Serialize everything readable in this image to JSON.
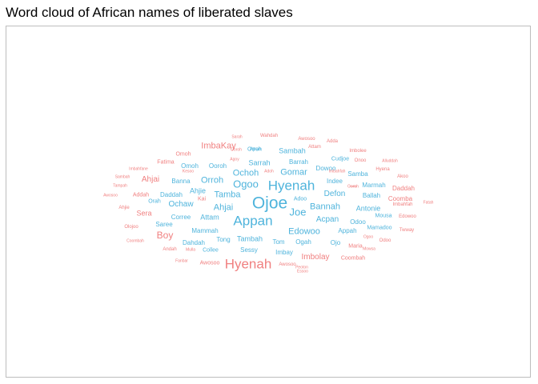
{
  "title": "Word cloud of African names of liberated slaves",
  "colors": {
    "red": "#f08080",
    "blue": "#4fb4dc"
  },
  "words": [
    {
      "text": "Ojoe",
      "color": "blue"
    },
    {
      "text": "Appan",
      "color": "blue"
    },
    {
      "text": "Hyenah",
      "color": "blue"
    },
    {
      "text": "Hyenah",
      "color": "red"
    },
    {
      "text": "Ogoo",
      "color": "blue"
    },
    {
      "text": "Joe",
      "color": "blue"
    },
    {
      "text": "Ochoh",
      "color": "blue"
    },
    {
      "text": "Bannah",
      "color": "blue"
    },
    {
      "text": "Gomar",
      "color": "blue"
    },
    {
      "text": "Orroh",
      "color": "blue"
    },
    {
      "text": "Ahjai",
      "color": "blue"
    },
    {
      "text": "Tamba",
      "color": "blue"
    },
    {
      "text": "Boy",
      "color": "red"
    },
    {
      "text": "ImbaKay",
      "color": "red"
    },
    {
      "text": "Edowoo",
      "color": "blue"
    },
    {
      "text": "Defon",
      "color": "blue"
    },
    {
      "text": "Acpan",
      "color": "blue"
    },
    {
      "text": "Ochaw",
      "color": "blue"
    },
    {
      "text": "Ahjai",
      "color": "red"
    },
    {
      "text": "Imbolay",
      "color": "red"
    },
    {
      "text": "Ahjie",
      "color": "blue"
    },
    {
      "text": "Sera",
      "color": "red"
    },
    {
      "text": "Attam",
      "color": "blue"
    },
    {
      "text": "Tambah",
      "color": "blue"
    },
    {
      "text": "Sambah",
      "color": "blue"
    },
    {
      "text": "Sarrah",
      "color": "blue"
    },
    {
      "text": "Barrah",
      "color": "blue"
    },
    {
      "text": "Dowoo",
      "color": "blue"
    },
    {
      "text": "Indee",
      "color": "blue"
    },
    {
      "text": "Antonie",
      "color": "blue"
    },
    {
      "text": "Odoo",
      "color": "blue"
    },
    {
      "text": "Appah",
      "color": "blue"
    },
    {
      "text": "Ogah",
      "color": "blue"
    },
    {
      "text": "Tom",
      "color": "blue"
    },
    {
      "text": "Tong",
      "color": "blue"
    },
    {
      "text": "Sessy",
      "color": "blue"
    },
    {
      "text": "Imbay",
      "color": "blue"
    },
    {
      "text": "Ojo",
      "color": "blue"
    },
    {
      "text": "Mammah",
      "color": "blue"
    },
    {
      "text": "Corree",
      "color": "blue"
    },
    {
      "text": "Saree",
      "color": "blue"
    },
    {
      "text": "Dahdah",
      "color": "blue"
    },
    {
      "text": "Daddah",
      "color": "blue"
    },
    {
      "text": "Banna",
      "color": "blue"
    },
    {
      "text": "Omoh",
      "color": "blue"
    },
    {
      "text": "Ooroh",
      "color": "blue"
    },
    {
      "text": "Samba",
      "color": "blue"
    },
    {
      "text": "Marmah",
      "color": "blue"
    },
    {
      "text": "Ballah",
      "color": "blue"
    },
    {
      "text": "Daddah",
      "color": "red"
    },
    {
      "text": "Coomba",
      "color": "red"
    },
    {
      "text": "Addah",
      "color": "red"
    },
    {
      "text": "Maria",
      "color": "red"
    },
    {
      "text": "Coombah",
      "color": "red"
    },
    {
      "text": "Awosoo",
      "color": "red"
    },
    {
      "text": "Fatima",
      "color": "red"
    },
    {
      "text": "Omoh",
      "color": "red"
    },
    {
      "text": "Mousa",
      "color": "blue"
    },
    {
      "text": "Mamadoo",
      "color": "blue"
    },
    {
      "text": "Cudjoe",
      "color": "blue"
    },
    {
      "text": "Collee",
      "color": "blue"
    },
    {
      "text": "Orroh",
      "color": "blue"
    },
    {
      "text": "Adoo",
      "color": "blue"
    },
    {
      "text": "Apan",
      "color": "blue"
    },
    {
      "text": "Kai",
      "color": "red"
    },
    {
      "text": "Hyena",
      "color": "red"
    },
    {
      "text": "Attam",
      "color": "red"
    },
    {
      "text": "Awosoo",
      "color": "red"
    },
    {
      "text": "Wahdah",
      "color": "red"
    },
    {
      "text": "Imbolee",
      "color": "red"
    },
    {
      "text": "Onoo",
      "color": "red"
    },
    {
      "text": "Edowoo",
      "color": "red"
    },
    {
      "text": "Imbahfah",
      "color": "red"
    },
    {
      "text": "Ahjie",
      "color": "red"
    },
    {
      "text": "Olojoo",
      "color": "red"
    },
    {
      "text": "Andah",
      "color": "red"
    },
    {
      "text": "Awosoo",
      "color": "red"
    },
    {
      "text": "Adda",
      "color": "red"
    },
    {
      "text": "Odoo",
      "color": "red"
    },
    {
      "text": "Twway",
      "color": "red"
    },
    {
      "text": "Akoo",
      "color": "red"
    },
    {
      "text": "Alluddah",
      "color": "red"
    },
    {
      "text": "Fatah",
      "color": "red"
    },
    {
      "text": "Sambah",
      "color": "red"
    },
    {
      "text": "Imbahfane",
      "color": "red"
    },
    {
      "text": "Tampah",
      "color": "red"
    },
    {
      "text": "Awosoo",
      "color": "red"
    },
    {
      "text": "Coombah",
      "color": "red"
    },
    {
      "text": "Sarah",
      "color": "red"
    },
    {
      "text": "Ooroh",
      "color": "red"
    },
    {
      "text": "Agoy",
      "color": "red"
    },
    {
      "text": "Kesoo",
      "color": "red"
    },
    {
      "text": "Adoh",
      "color": "red"
    },
    {
      "text": "Imbahfah",
      "color": "red"
    },
    {
      "text": "Ooroh",
      "color": "red"
    },
    {
      "text": "Essoo",
      "color": "red"
    },
    {
      "text": "Ogoo",
      "color": "red"
    },
    {
      "text": "Fanbar",
      "color": "red"
    },
    {
      "text": "Mulla",
      "color": "red"
    },
    {
      "text": "Peoton",
      "color": "red"
    },
    {
      "text": "Ludo",
      "color": "red"
    },
    {
      "text": "Mowsa",
      "color": "red"
    },
    {
      "text": "Orah",
      "color": "blue"
    }
  ]
}
